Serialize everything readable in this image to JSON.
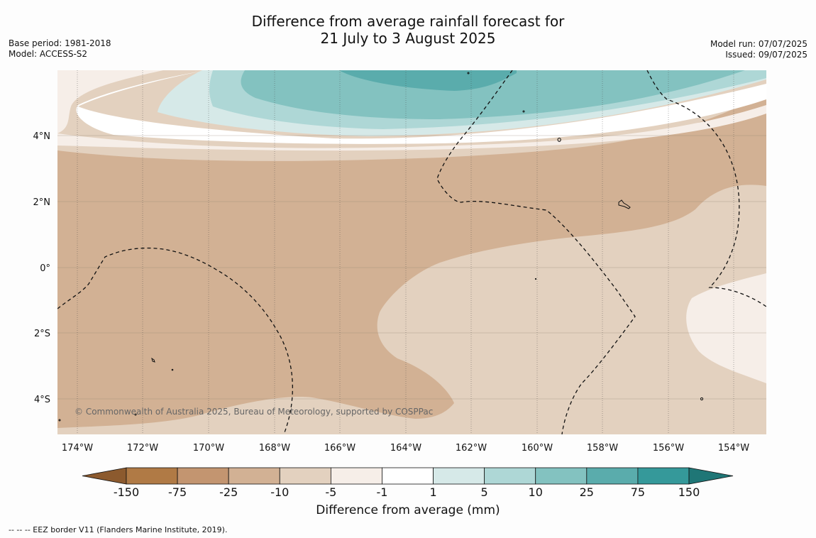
{
  "title_line1": "Difference from average rainfall forecast for",
  "title_line2": "21 July to 3 August 2025",
  "meta_left": [
    "Base period: 1981-2018",
    "Model: ACCESS-S2"
  ],
  "meta_right": [
    "Model run: 07/07/2025",
    "Issued: 09/07/2025"
  ],
  "copyright": "© Commonwealth of Australia 2025, Bureau of Meteorology, supported by COSPPac",
  "lat_labels": [
    "4°N",
    "2°N",
    "0°",
    "2°S",
    "4°S"
  ],
  "lon_labels": [
    "174°W",
    "172°W",
    "170°W",
    "168°W",
    "166°W",
    "164°W",
    "162°W",
    "160°W",
    "158°W",
    "156°W",
    "154°W"
  ],
  "colorbar": {
    "title": "Difference from average (mm)",
    "tick_labels": [
      "-150",
      "-75",
      "-25",
      "-10",
      "-5",
      "-1",
      "1",
      "5",
      "10",
      "25",
      "75",
      "150"
    ],
    "colors": [
      "#8c5a2e",
      "#b07a45",
      "#c39570",
      "#d2b194",
      "#e3d1bf",
      "#f6eee8",
      "#ffffff",
      "#d6e9e8",
      "#aed7d6",
      "#83c2c0",
      "#5aacac",
      "#35999a",
      "#1f7676"
    ]
  },
  "footnote": "--  --  -- EEZ border V11 (Flanders Marine Institute, 2019)."
}
